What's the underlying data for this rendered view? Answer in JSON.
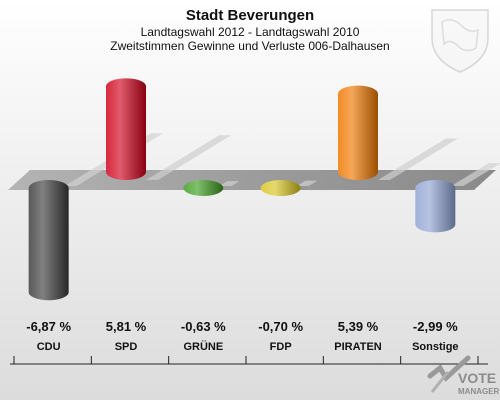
{
  "chart_data": {
    "type": "bar",
    "title": "Stadt Beverungen",
    "subtitle_lines": [
      "Landtagswahl 2012 - Landtagswahl 2010",
      "Zweitstimmen Gewinne und Verluste 006-Dalhausen"
    ],
    "categories": [
      "CDU",
      "SPD",
      "GRÜNE",
      "FDP",
      "PIRATEN",
      "Sonstige"
    ],
    "values": [
      -6.87,
      5.81,
      -0.63,
      -0.7,
      5.39,
      -2.99
    ],
    "value_labels": [
      "-6,87 %",
      "5,81 %",
      "-0,63 %",
      "-0,70 %",
      "5,39 %",
      "-2,99 %"
    ],
    "colors": [
      "#3c3c3c",
      "#d0021b",
      "#3c9c1e",
      "#d8c41e",
      "#f07800",
      "#8fa3d2"
    ],
    "ylim": [
      -7.5,
      6.5
    ],
    "grid": false,
    "legend": "none"
  },
  "branding": {
    "logo_line1": "VOTE",
    "logo_line2": "MANAGER"
  }
}
